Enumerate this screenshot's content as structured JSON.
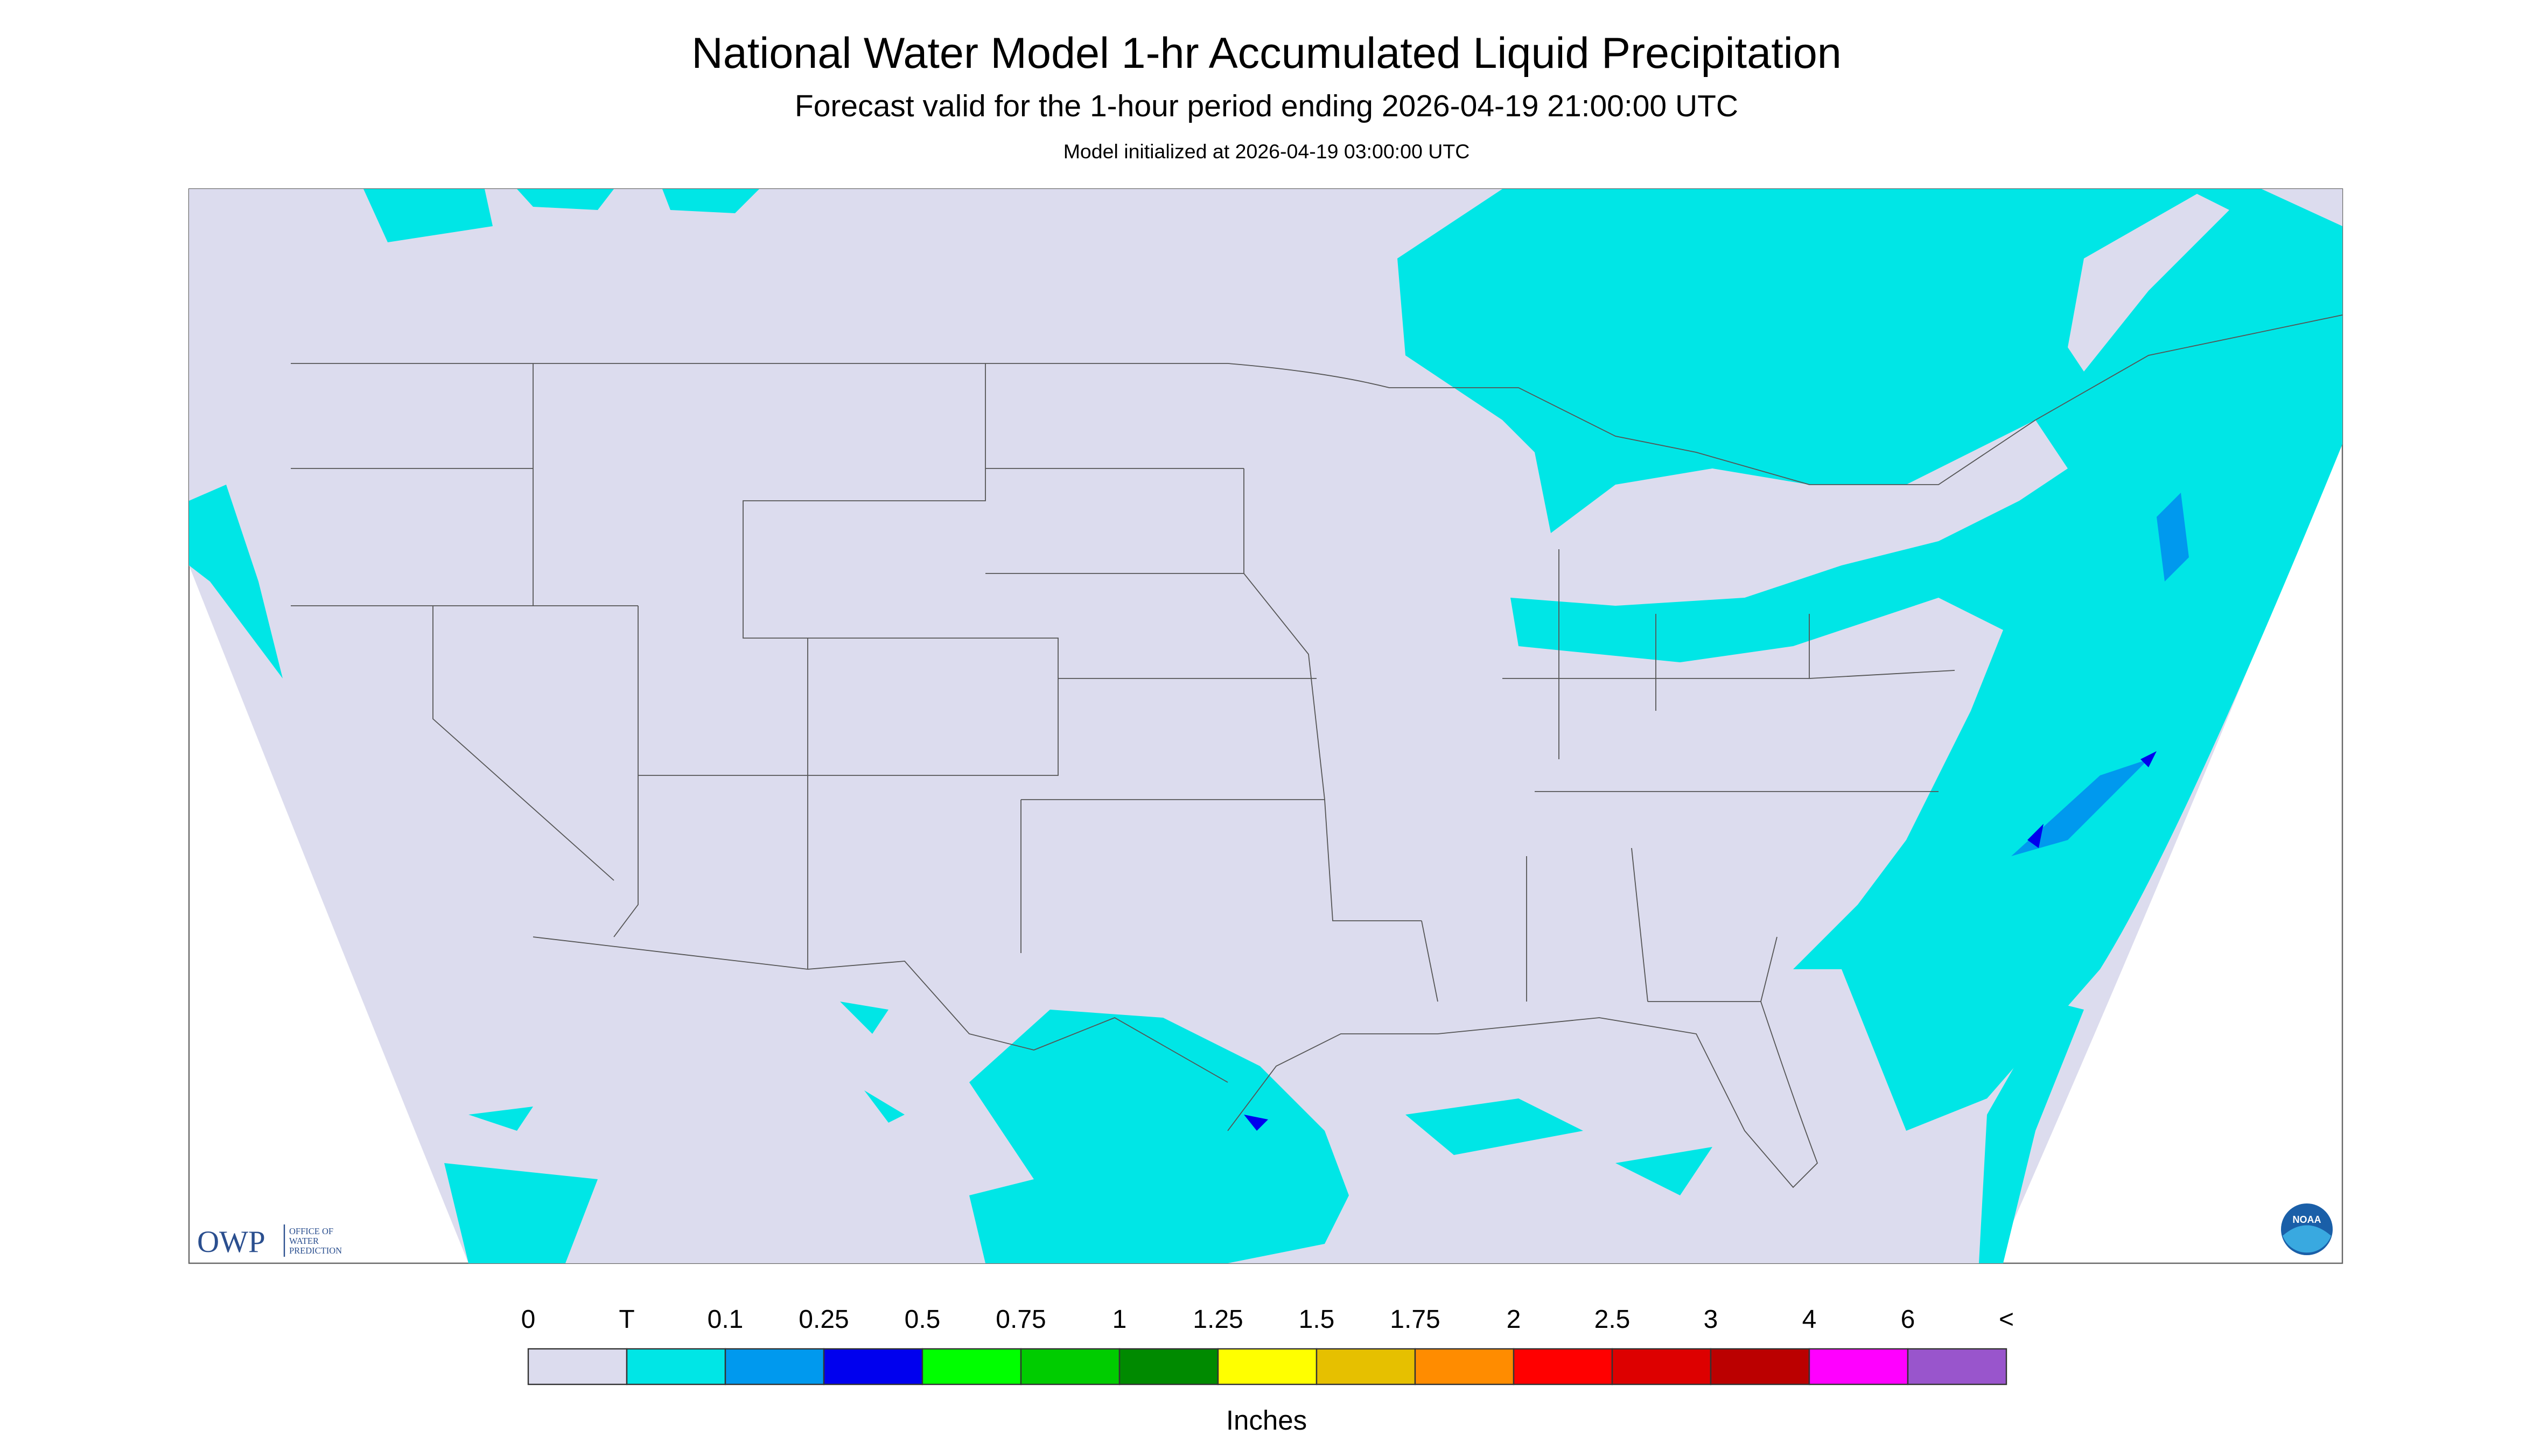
{
  "header": {
    "title": "National Water Model 1-hr Accumulated Liquid Precipitation",
    "subtitle": "Forecast valid for the 1-hour period ending 2026-04-19 21:00:00 UTC",
    "note": "Model initialized at 2026-04-19 03:00:00 UTC"
  },
  "logos": {
    "owp": "OWP",
    "owp_lines": [
      "OFFICE OF",
      "WATER",
      "PREDICTION"
    ],
    "noaa": "NOAA"
  },
  "legend": {
    "labels": [
      "0",
      "T",
      "0.1",
      "0.25",
      "0.5",
      "0.75",
      "1",
      "1.25",
      "1.5",
      "1.75",
      "2",
      "2.5",
      "3",
      "4",
      "6",
      "<"
    ],
    "colors": [
      "#dcdcee",
      "#00e6e6",
      "#0099ee",
      "#0000ee",
      "#00ff00",
      "#00cc00",
      "#008a00",
      "#ffff00",
      "#e6c000",
      "#ff8c00",
      "#ff0000",
      "#dd0000",
      "#bb0000",
      "#ff00ff",
      "#9955cc"
    ],
    "units": "Inches"
  }
}
